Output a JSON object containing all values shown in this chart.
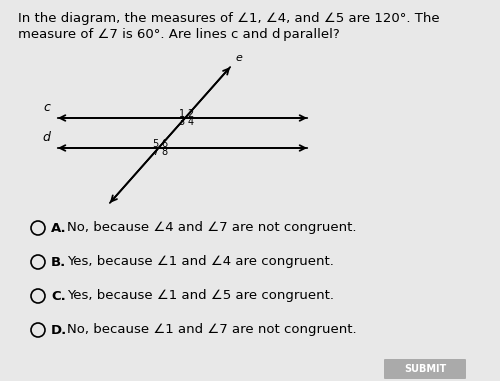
{
  "title_text": "In the diagram, the measures of ∠1, ∠4, and ∠5 are 120°. The\nmeasure of ∠7 is 60°. Are lines c and d parallel?",
  "bg_color": "#e8e8e8",
  "choices": [
    [
      "∠",
      "A.",
      "No, because ∠4 and ∠7 are not congruent."
    ],
    [
      "∠",
      "B.",
      "Yes, because ∠1 and ∠4 are congruent."
    ],
    [
      "∠",
      "C.",
      "Yes, because ∠1 and ∠5 are congruent."
    ],
    [
      "∠",
      "D.",
      "No, because ∠1 and ∠7 are not congruent."
    ]
  ],
  "font_size_title": 9.5,
  "font_size_choices": 9.5,
  "label_c": "c",
  "label_d": "d",
  "label_e": "e",
  "submit_text": "SUBMIT"
}
